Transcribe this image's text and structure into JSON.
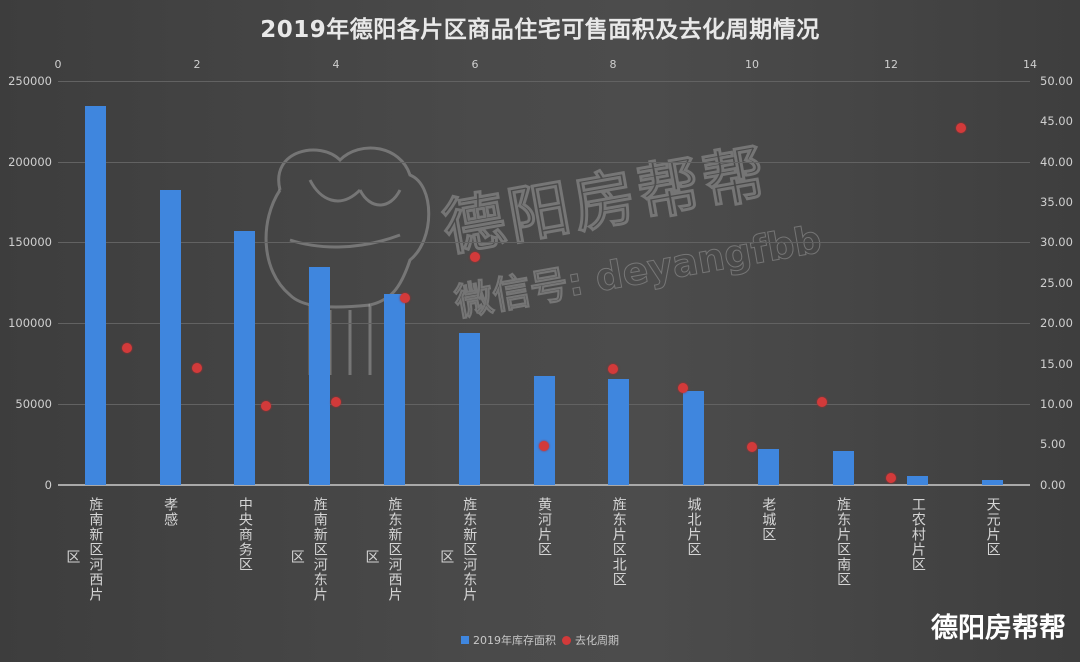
{
  "title": "2019年德阳各片区商品住宅可售面积及去化周期情况",
  "watermark": {
    "brand": "德阳房帮帮",
    "wechat": "微信号: deyangfbb"
  },
  "brand_label": "德阳房帮帮",
  "legend": {
    "bar_label": "2019年库存面积",
    "dot_label": "去化周期"
  },
  "colors": {
    "bar": "#3f86de",
    "dot": "#d23a3a",
    "background": "#464646"
  },
  "axes": {
    "top_ticks": [
      "0",
      "2",
      "4",
      "6",
      "8",
      "10",
      "12",
      "14"
    ],
    "left_ticks": [
      "250000",
      "200000",
      "150000",
      "100000",
      "50000",
      "0"
    ],
    "right_ticks": [
      "50.00",
      "45.00",
      "40.00",
      "35.00",
      "30.00",
      "25.00",
      "20.00",
      "15.00",
      "10.00",
      "5.00",
      "0.00"
    ]
  },
  "categories": [
    {
      "main": "旌南新区河西片",
      "tail": "区"
    },
    {
      "main": "孝感",
      "tail": ""
    },
    {
      "main": "中央商务区",
      "tail": ""
    },
    {
      "main": "旌南新区河东片",
      "tail": "区"
    },
    {
      "main": "旌东新区河西片",
      "tail": "区"
    },
    {
      "main": "旌东新区河东片",
      "tail": "区"
    },
    {
      "main": "黄河片区",
      "tail": ""
    },
    {
      "main": "旌东片区北区",
      "tail": ""
    },
    {
      "main": "城北片区",
      "tail": ""
    },
    {
      "main": "老城区",
      "tail": ""
    },
    {
      "main": "旌东片区南区",
      "tail": ""
    },
    {
      "main": "工农村片区",
      "tail": ""
    },
    {
      "main": "天元片区",
      "tail": ""
    }
  ],
  "chart_data": {
    "type": "bar",
    "title": "2019年德阳各片区商品住宅可售面积及去化周期情况",
    "categories": [
      "旌南新区河西片区",
      "孝感",
      "中央商务区",
      "旌南新区河东片区",
      "旌东新区河西片区",
      "旌东新区河东片区",
      "黄河片区",
      "旌东片区北区",
      "城北片区",
      "老城区",
      "旌东片区南区",
      "工农村片区",
      "天元片区"
    ],
    "series": [
      {
        "name": "2019年库存面积",
        "type": "bar",
        "axis": "left",
        "values": [
          234500,
          182500,
          157000,
          135000,
          118000,
          94000,
          67500,
          65500,
          58000,
          22000,
          21000,
          5500,
          3000
        ]
      },
      {
        "name": "去化周期",
        "type": "scatter",
        "axis": "right",
        "x": [
          1,
          2,
          3,
          4,
          5,
          6,
          7,
          8,
          9,
          10,
          11,
          12,
          13
        ],
        "values": [
          17.0,
          14.5,
          9.8,
          10.3,
          23.1,
          28.2,
          4.8,
          14.4,
          12.0,
          4.7,
          10.3,
          0.9,
          44.2
        ]
      }
    ],
    "xlabel": "",
    "ylabel": "",
    "ylim_left": [
      0,
      250000
    ],
    "ylim_right": [
      0,
      50
    ],
    "xlim_top": [
      0,
      14
    ],
    "grid": true,
    "legend_position": "bottom"
  }
}
